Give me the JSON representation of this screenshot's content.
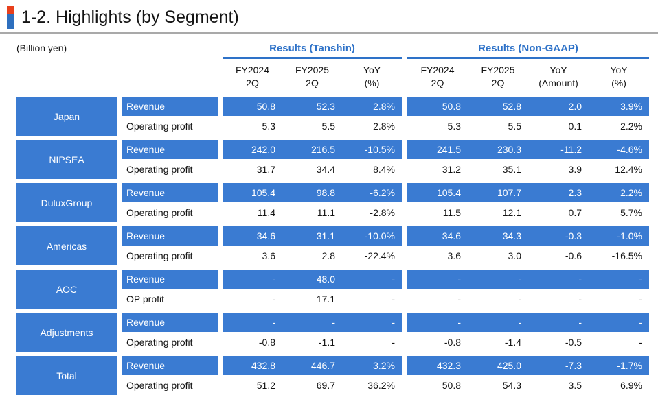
{
  "page": {
    "title": "1-2. Highlights (by Segment)",
    "unit_label": "(Billion yen)"
  },
  "colors": {
    "cell_blue": "#3a7bd2",
    "heading_blue": "#2e72c8",
    "title_accent_red": "#e8401c",
    "title_accent_blue": "#2e6fbe",
    "rule_gray": "#a9a9a9"
  },
  "table": {
    "groups": [
      {
        "label": "Results (Tanshin)",
        "columns": [
          {
            "line1": "FY2024",
            "line2": "2Q"
          },
          {
            "line1": "FY2025",
            "line2": "2Q"
          },
          {
            "line1": "YoY",
            "line2": "(%)"
          }
        ]
      },
      {
        "label": "Results (Non-GAAP)",
        "columns": [
          {
            "line1": "FY2024",
            "line2": "2Q"
          },
          {
            "line1": "FY2025",
            "line2": "2Q"
          },
          {
            "line1": "YoY",
            "line2": "(Amount)"
          },
          {
            "line1": "YoY",
            "line2": "(%)"
          }
        ]
      }
    ],
    "segments": [
      {
        "name": "Japan",
        "rows": [
          {
            "label": "Revenue",
            "highlight": true,
            "tanshin": [
              "50.8",
              "52.3",
              "2.8%"
            ],
            "nongaap": [
              "50.8",
              "52.8",
              "2.0",
              "3.9%"
            ]
          },
          {
            "label": "Operating profit",
            "highlight": false,
            "tanshin": [
              "5.3",
              "5.5",
              "2.8%"
            ],
            "nongaap": [
              "5.3",
              "5.5",
              "0.1",
              "2.2%"
            ]
          }
        ]
      },
      {
        "name": "NIPSEA",
        "rows": [
          {
            "label": "Revenue",
            "highlight": true,
            "tanshin": [
              "242.0",
              "216.5",
              "-10.5%"
            ],
            "nongaap": [
              "241.5",
              "230.3",
              "-11.2",
              "-4.6%"
            ]
          },
          {
            "label": "Operating profit",
            "highlight": false,
            "tanshin": [
              "31.7",
              "34.4",
              "8.4%"
            ],
            "nongaap": [
              "31.2",
              "35.1",
              "3.9",
              "12.4%"
            ]
          }
        ]
      },
      {
        "name": "DuluxGroup",
        "rows": [
          {
            "label": "Revenue",
            "highlight": true,
            "tanshin": [
              "105.4",
              "98.8",
              "-6.2%"
            ],
            "nongaap": [
              "105.4",
              "107.7",
              "2.3",
              "2.2%"
            ]
          },
          {
            "label": "Operating profit",
            "highlight": false,
            "tanshin": [
              "11.4",
              "11.1",
              "-2.8%"
            ],
            "nongaap": [
              "11.5",
              "12.1",
              "0.7",
              "5.7%"
            ]
          }
        ]
      },
      {
        "name": "Americas",
        "rows": [
          {
            "label": "Revenue",
            "highlight": true,
            "tanshin": [
              "34.6",
              "31.1",
              "-10.0%"
            ],
            "nongaap": [
              "34.6",
              "34.3",
              "-0.3",
              "-1.0%"
            ]
          },
          {
            "label": "Operating profit",
            "highlight": false,
            "tanshin": [
              "3.6",
              "2.8",
              "-22.4%"
            ],
            "nongaap": [
              "3.6",
              "3.0",
              "-0.6",
              "-16.5%"
            ]
          }
        ]
      },
      {
        "name": "AOC",
        "rows": [
          {
            "label": "Revenue",
            "highlight": true,
            "tanshin": [
              "-",
              "48.0",
              "-"
            ],
            "nongaap": [
              "-",
              "-",
              "-",
              "-"
            ]
          },
          {
            "label": "OP profit",
            "highlight": false,
            "tanshin": [
              "-",
              "17.1",
              "-"
            ],
            "nongaap": [
              "-",
              "-",
              "-",
              "-"
            ]
          }
        ]
      },
      {
        "name": "Adjustments",
        "rows": [
          {
            "label": "Revenue",
            "highlight": true,
            "tanshin": [
              "-",
              "-",
              "-"
            ],
            "nongaap": [
              "-",
              "-",
              "-",
              "-"
            ]
          },
          {
            "label": "Operating profit",
            "highlight": false,
            "tanshin": [
              "-0.8",
              "-1.1",
              "-"
            ],
            "nongaap": [
              "-0.8",
              "-1.4",
              "-0.5",
              "-"
            ]
          }
        ]
      },
      {
        "name": "Total",
        "rows": [
          {
            "label": "Revenue",
            "highlight": true,
            "tanshin": [
              "432.8",
              "446.7",
              "3.2%"
            ],
            "nongaap": [
              "432.3",
              "425.0",
              "-7.3",
              "-1.7%"
            ]
          },
          {
            "label": "Operating profit",
            "highlight": false,
            "tanshin": [
              "51.2",
              "69.7",
              "36.2%"
            ],
            "nongaap": [
              "50.8",
              "54.3",
              "3.5",
              "6.9%"
            ]
          }
        ]
      }
    ]
  }
}
